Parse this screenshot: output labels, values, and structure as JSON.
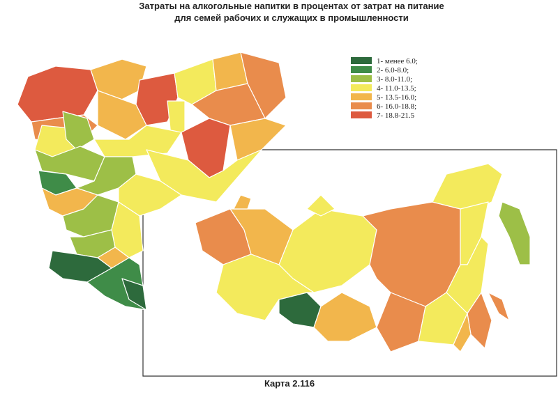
{
  "title_lines": [
    "Затраты на алкогольные напитки в процентах от затрат на питание",
    "для семей рабочих и служащих в промышленности"
  ],
  "legend": [
    {
      "label": "1- менее 6.0;",
      "color": "#2d6a3c"
    },
    {
      "label": "2- 6.0-8.0;",
      "color": "#3f8c48"
    },
    {
      "label": "3- 8.0-11.0;",
      "color": "#9dbf47"
    },
    {
      "label": "4- 11.0-13.5;",
      "color": "#f3ea5c"
    },
    {
      "label": "5- 13.5-16.0;",
      "color": "#f2b64c"
    },
    {
      "label": "6- 16.0-18.8;",
      "color": "#e98c4c"
    },
    {
      "label": "7- 18.8-21.5",
      "color": "#dd5a3f"
    }
  ],
  "caption": "Карта 2.116"
}
